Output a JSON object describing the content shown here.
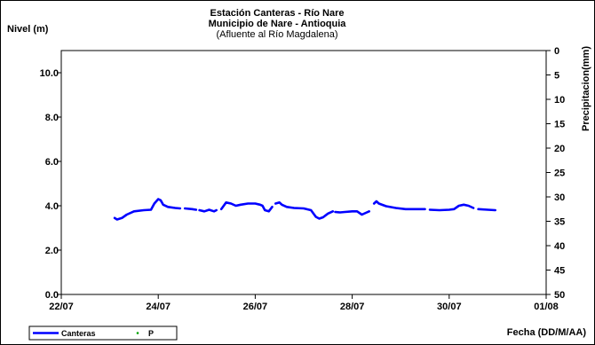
{
  "chart_data": {
    "type": "line",
    "title_lines": [
      "Estación Canteras - Río Nare",
      "Municipio de Nare - Antioquia"
    ],
    "subtitle": "(Afluente al Río Magdalena)",
    "ylabel": "Nivel (m)",
    "y2label": "Precipitacion(mm)",
    "xlabel": "Fecha (DD/M/AA)",
    "x_ticks": [
      "22/07",
      "24/07",
      "26/07",
      "28/07",
      "30/07",
      "01/08"
    ],
    "y_ticks": [
      "0.0",
      "2.0",
      "4.0",
      "6.0",
      "8.0",
      "10.0"
    ],
    "y2_ticks": [
      "0",
      "5",
      "10",
      "15",
      "20",
      "25",
      "30",
      "35",
      "40",
      "45",
      "50"
    ],
    "xlim_days": [
      22,
      32
    ],
    "ylim": [
      0,
      11
    ],
    "y2lim": [
      0,
      50
    ],
    "y2_inverted": true,
    "grid": false,
    "legend_position": "bottom-left",
    "series": [
      {
        "name": "Canteras",
        "color": "#0000ff",
        "axis": "left",
        "segments": [
          [
            [
              23.1,
              3.45
            ],
            [
              23.15,
              3.38
            ],
            [
              23.25,
              3.45
            ],
            [
              23.35,
              3.6
            ],
            [
              23.5,
              3.75
            ],
            [
              23.7,
              3.8
            ],
            [
              23.85,
              3.82
            ],
            [
              23.92,
              4.1
            ],
            [
              24.0,
              4.3
            ],
            [
              24.05,
              4.25
            ],
            [
              24.1,
              4.05
            ],
            [
              24.2,
              3.95
            ],
            [
              24.35,
              3.9
            ],
            [
              24.45,
              3.88
            ]
          ],
          [
            [
              24.55,
              3.88
            ],
            [
              24.7,
              3.85
            ],
            [
              24.78,
              3.82
            ]
          ],
          [
            [
              24.85,
              3.8
            ],
            [
              24.95,
              3.75
            ],
            [
              25.05,
              3.82
            ],
            [
              25.15,
              3.75
            ],
            [
              25.2,
              3.8
            ]
          ],
          [
            [
              25.3,
              3.85
            ],
            [
              25.4,
              4.15
            ],
            [
              25.5,
              4.1
            ],
            [
              25.6,
              4.0
            ],
            [
              25.7,
              4.05
            ],
            [
              25.85,
              4.1
            ],
            [
              26.0,
              4.1
            ],
            [
              26.1,
              4.05
            ],
            [
              26.15,
              4.0
            ],
            [
              26.2,
              3.8
            ],
            [
              26.28,
              3.75
            ],
            [
              26.35,
              3.95
            ]
          ],
          [
            [
              26.42,
              4.1
            ],
            [
              26.5,
              4.15
            ],
            [
              26.55,
              4.05
            ],
            [
              26.65,
              3.95
            ],
            [
              26.8,
              3.9
            ],
            [
              27.0,
              3.88
            ],
            [
              27.15,
              3.8
            ],
            [
              27.25,
              3.5
            ],
            [
              27.32,
              3.42
            ],
            [
              27.4,
              3.48
            ],
            [
              27.5,
              3.65
            ],
            [
              27.6,
              3.75
            ]
          ],
          [
            [
              27.65,
              3.72
            ],
            [
              27.75,
              3.7
            ],
            [
              27.85,
              3.72
            ],
            [
              28.0,
              3.75
            ],
            [
              28.1,
              3.75
            ],
            [
              28.2,
              3.6
            ],
            [
              28.3,
              3.7
            ],
            [
              28.35,
              3.75
            ]
          ],
          [
            [
              28.45,
              4.1
            ],
            [
              28.5,
              4.2
            ],
            [
              28.55,
              4.1
            ],
            [
              28.7,
              3.98
            ],
            [
              28.9,
              3.9
            ],
            [
              29.1,
              3.85
            ],
            [
              29.3,
              3.85
            ],
            [
              29.5,
              3.85
            ]
          ],
          [
            [
              29.6,
              3.82
            ],
            [
              29.8,
              3.8
            ],
            [
              30.0,
              3.82
            ],
            [
              30.1,
              3.85
            ],
            [
              30.2,
              4.0
            ],
            [
              30.3,
              4.05
            ],
            [
              30.4,
              4.0
            ],
            [
              30.5,
              3.9
            ]
          ],
          [
            [
              30.6,
              3.85
            ],
            [
              30.8,
              3.82
            ],
            [
              30.95,
              3.8
            ]
          ]
        ]
      },
      {
        "name": "P",
        "color": "#00a000",
        "axis": "right",
        "points": []
      }
    ]
  }
}
